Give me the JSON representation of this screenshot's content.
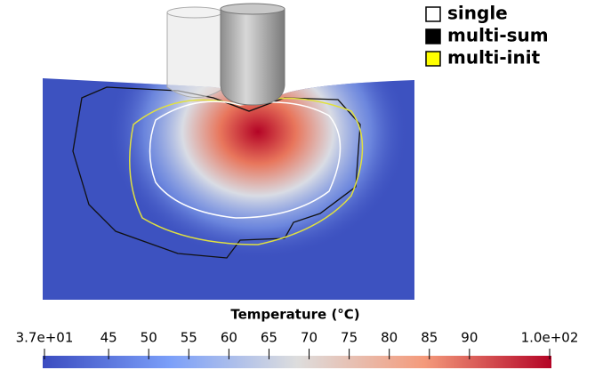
{
  "legend": [
    {
      "label": "single",
      "color": "#ffffff"
    },
    {
      "label": "multi-sum",
      "color": "#000000"
    },
    {
      "label": "multi-init",
      "color": "#ffff00"
    }
  ],
  "colorbar": {
    "title": "Temperature (°C)",
    "range": [
      37,
      100
    ],
    "ticks": [
      {
        "value": 37,
        "label": "3.7e+01"
      },
      45,
      50,
      55,
      60,
      65,
      70,
      75,
      80,
      85,
      90,
      {
        "value": 100,
        "label": "1.0e+02"
      }
    ]
  }
}
